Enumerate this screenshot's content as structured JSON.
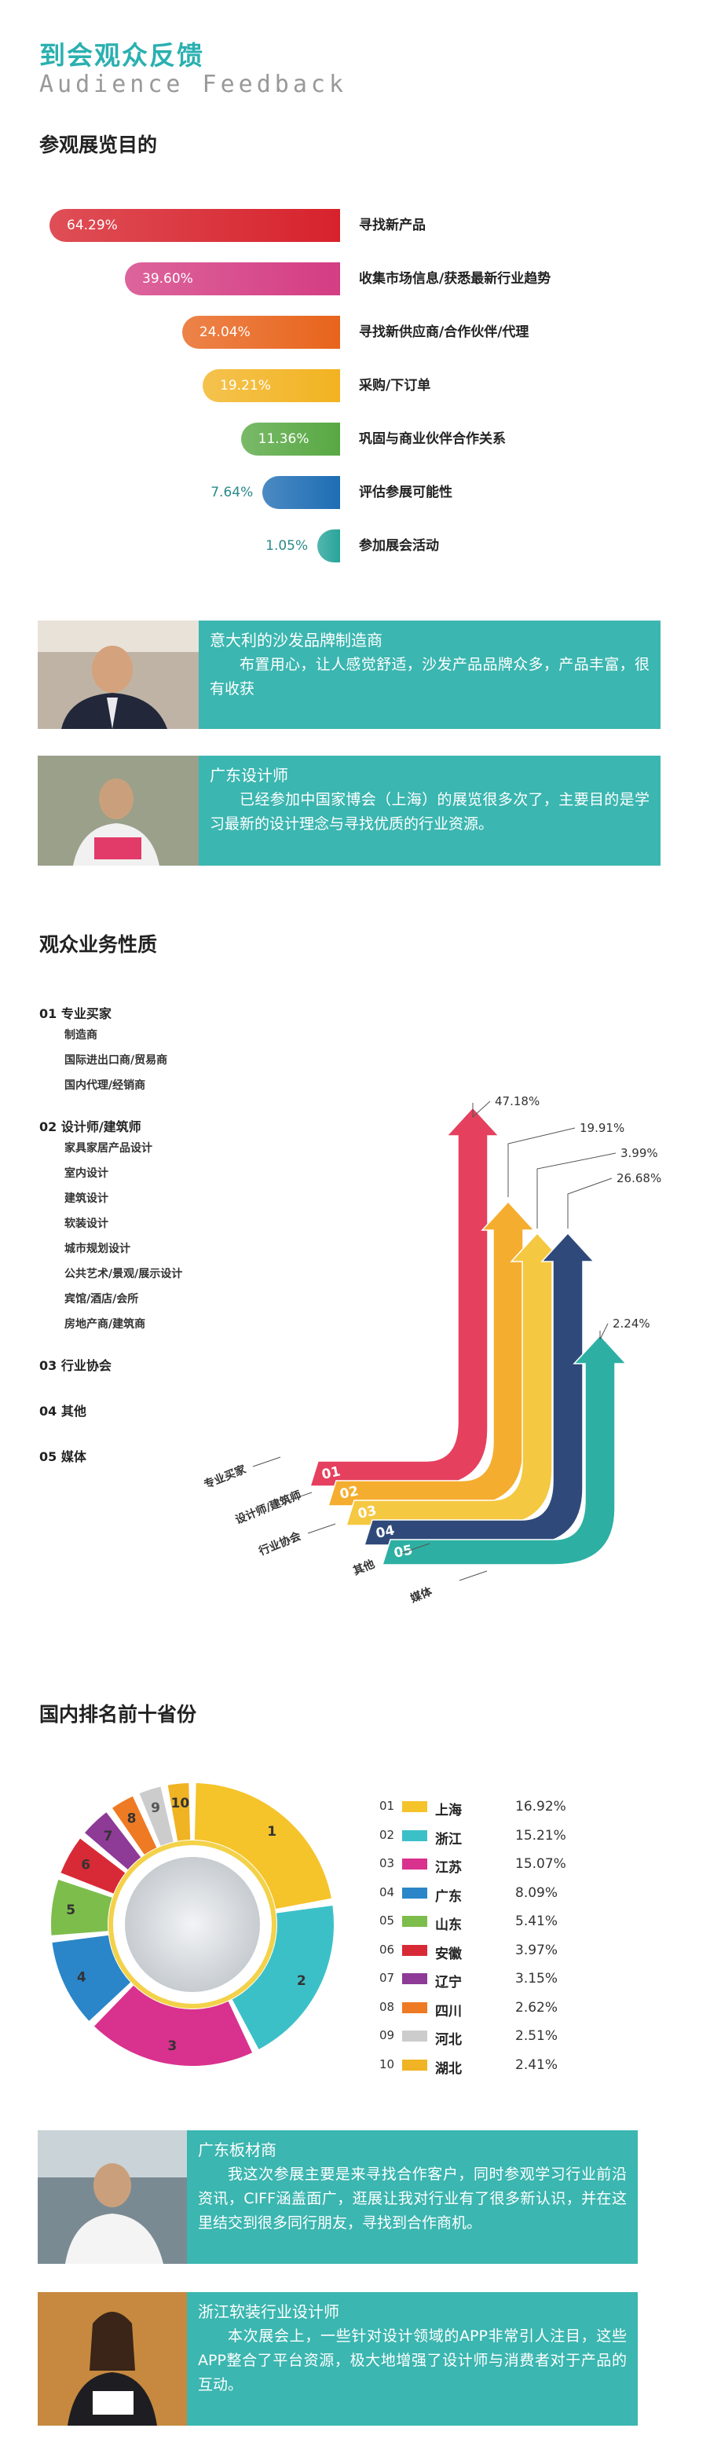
{
  "header": {
    "title_cn": "到会观众反馈",
    "title_en": "Audience Feedback"
  },
  "purpose": {
    "title": "参观展览目的",
    "items": [
      {
        "label": "寻找新产品",
        "pct": "64.29%",
        "value": 64.29,
        "color": "#d7222c"
      },
      {
        "label": "收集市场信息/获悉最新行业趋势",
        "pct": "39.60%",
        "value": 39.6,
        "color": "#d43d83"
      },
      {
        "label": "寻找新供应商/合作伙伴/代理",
        "pct": "24.04%",
        "value": 24.04,
        "color": "#e8641c"
      },
      {
        "label": "采购/下订单",
        "pct": "19.21%",
        "value": 19.21,
        "color": "#f2b321"
      },
      {
        "label": "巩固与商业伙伴合作关系",
        "pct": "11.36%",
        "value": 11.36,
        "color": "#58a843"
      },
      {
        "label": "评估参展可能性",
        "pct": "7.64%",
        "value": 7.64,
        "color": "#1e6db4"
      },
      {
        "label": "参加展会活动",
        "pct": "1.05%",
        "value": 1.05,
        "color": "#28a49a"
      }
    ]
  },
  "testimonials_1": [
    {
      "name": "意大利的沙发品牌制造商",
      "text": "布置用心，让人感觉舒适，沙发产品品牌众多，产品丰富，很有收获"
    },
    {
      "name": "广东设计师",
      "text": "已经参加中国家博会（上海）的展览很多次了，主要目的是学习最新的设计理念与寻找优质的行业资源。"
    }
  ],
  "business": {
    "title": "观众业务性质",
    "groups": [
      {
        "num": "01",
        "label": "专业买家",
        "subs": [
          "制造商",
          "国际进出口商/贸易商",
          "国内代理/经销商"
        ]
      },
      {
        "num": "02",
        "label": "设计师/建筑师",
        "subs": [
          "家具家居产品设计",
          "室内设计",
          "建筑设计",
          "软装设计",
          "城市规划设计",
          "公共艺术/景观/展示设计",
          "宾馆/酒店/会所",
          "房地产商/建筑商"
        ]
      },
      {
        "num": "03",
        "label": "行业协会",
        "subs": []
      },
      {
        "num": "04",
        "label": "其他",
        "subs": []
      },
      {
        "num": "05",
        "label": "媒体",
        "subs": []
      }
    ],
    "chart_data": {
      "type": "bar",
      "categories": [
        "专业买家",
        "设计师/建筑师",
        "行业协会",
        "其他",
        "媒体"
      ],
      "codes": [
        "01",
        "02",
        "03",
        "04",
        "05"
      ],
      "values": [
        47.18,
        19.91,
        3.99,
        26.68,
        2.24
      ],
      "labels": [
        "47.18%",
        "19.91%",
        "3.99%",
        "26.68%",
        "2.24%"
      ],
      "colors": [
        "#e5405e",
        "#f5ad2f",
        "#f5c842",
        "#2f4a7a",
        "#2db0a3"
      ]
    }
  },
  "provinces": {
    "title": "国内排名前十省份",
    "chart_data": {
      "type": "pie",
      "categories": [
        "上海",
        "浙江",
        "江苏",
        "广东",
        "山东",
        "安徽",
        "辽宁",
        "四川",
        "河北",
        "湖北"
      ],
      "codes": [
        "01",
        "02",
        "03",
        "04",
        "05",
        "06",
        "07",
        "08",
        "09",
        "10"
      ],
      "slice_labels": [
        "1",
        "2",
        "3",
        "4",
        "5",
        "6",
        "7",
        "8",
        "9",
        "10"
      ],
      "values": [
        16.92,
        15.21,
        15.07,
        8.09,
        5.41,
        3.97,
        3.15,
        2.62,
        2.51,
        2.41
      ],
      "labels": [
        "16.92%",
        "15.21%",
        "15.07%",
        "8.09%",
        "5.41%",
        "3.97%",
        "3.15%",
        "2.62%",
        "2.51%",
        "2.41%"
      ],
      "colors": [
        "#f5c32a",
        "#3cc0c8",
        "#d9318e",
        "#2a86c8",
        "#7dbd4c",
        "#d82a36",
        "#8e3a97",
        "#ee7a24",
        "#cccccc",
        "#f0b323"
      ]
    }
  },
  "testimonials_2": [
    {
      "name": "广东板材商",
      "text": "我这次参展主要是来寻找合作客户，同时参观学习行业前沿资讯，CIFF涵盖面广，逛展让我对行业有了很多新认识，并在这里结交到很多同行朋友，寻找到合作商机。"
    },
    {
      "name": "浙江软装行业设计师",
      "text": "本次展会上，一些针对设计领域的APP非常引人注目，这些APP整合了平台资源，极大地增强了设计师与消费者对于产品的互动。"
    }
  ]
}
